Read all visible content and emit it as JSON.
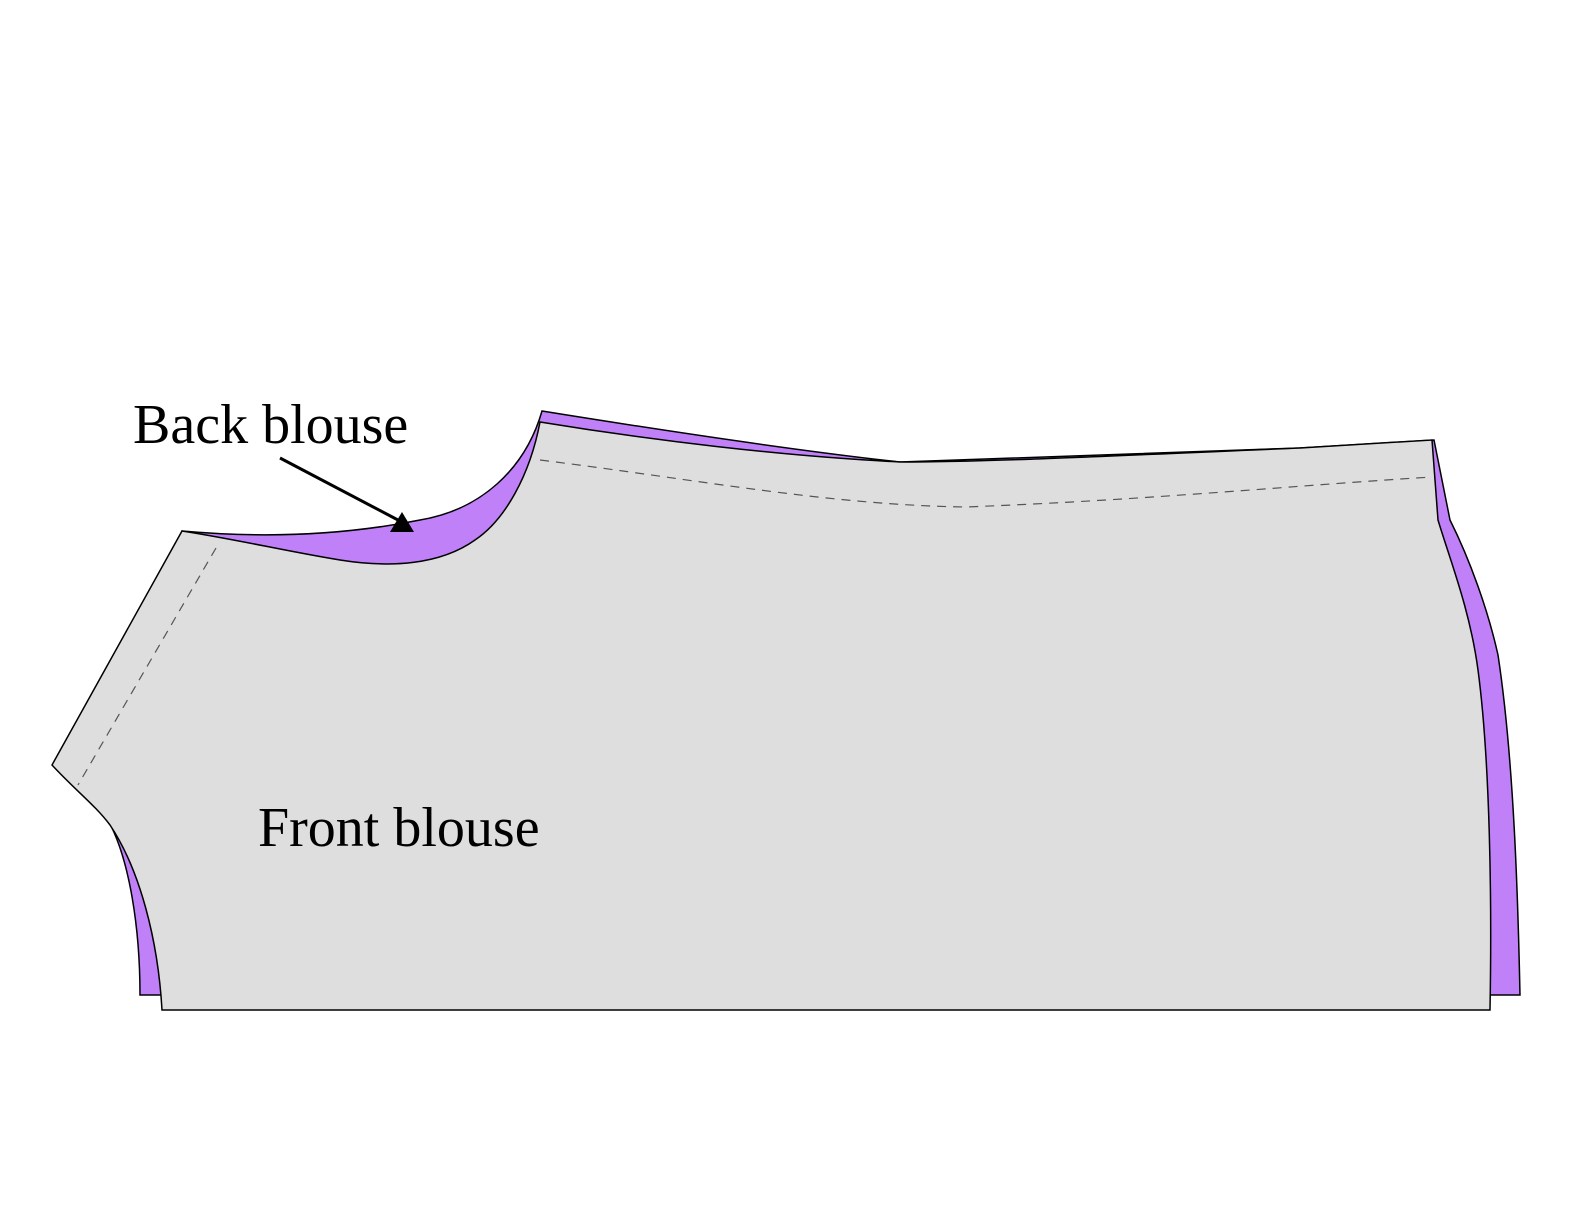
{
  "labels": {
    "back": "Back blouse",
    "front": "Front blouse"
  },
  "colors": {
    "back_piece": "#bf80f8",
    "front_piece": "#dedede",
    "outline": "#000000",
    "seam_line": "#555555",
    "background": "#ffffff"
  }
}
